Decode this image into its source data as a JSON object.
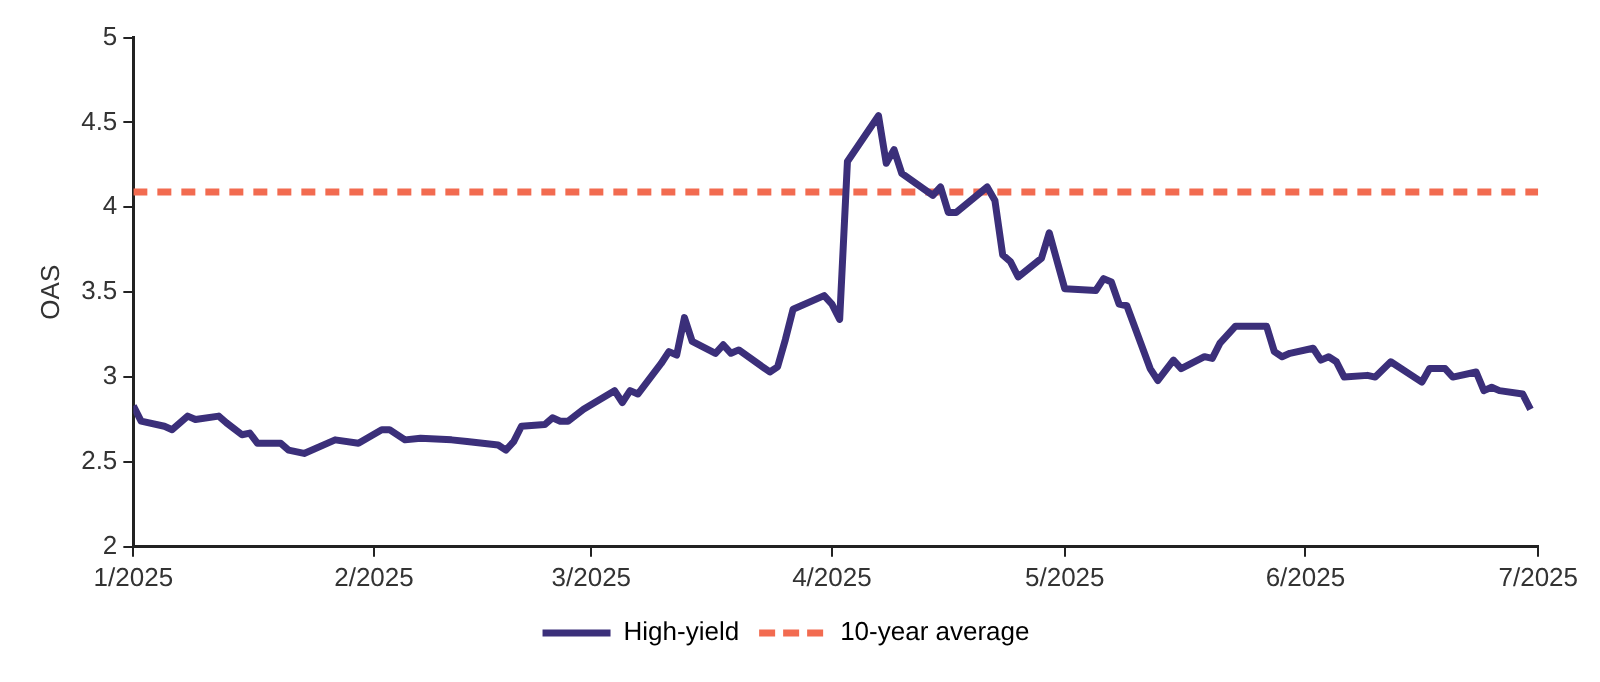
{
  "chart_data": {
    "type": "line",
    "ylabel": "OAS",
    "x": [
      "2025-01-01",
      "2025-01-02",
      "2025-01-05",
      "2025-01-06",
      "2025-01-08",
      "2025-01-09",
      "2025-01-12",
      "2025-01-13",
      "2025-01-15",
      "2025-01-16",
      "2025-01-17",
      "2025-01-20",
      "2025-01-21",
      "2025-01-23",
      "2025-01-27",
      "2025-01-30",
      "2025-02-02",
      "2025-02-03",
      "2025-02-05",
      "2025-02-07",
      "2025-02-11",
      "2025-02-13",
      "2025-02-17",
      "2025-02-18",
      "2025-02-19",
      "2025-02-20",
      "2025-02-23",
      "2025-02-24",
      "2025-02-25",
      "2025-02-26",
      "2025-02-28",
      "2025-03-04",
      "2025-03-05",
      "2025-03-06",
      "2025-03-07",
      "2025-03-10",
      "2025-03-11",
      "2025-03-12",
      "2025-03-13",
      "2025-03-14",
      "2025-03-17",
      "2025-03-18",
      "2025-03-19",
      "2025-03-20",
      "2025-03-24",
      "2025-03-25",
      "2025-03-26",
      "2025-03-27",
      "2025-03-31",
      "2025-04-01",
      "2025-04-02",
      "2025-04-03",
      "2025-04-07",
      "2025-04-08",
      "2025-04-09",
      "2025-04-10",
      "2025-04-14",
      "2025-04-15",
      "2025-04-16",
      "2025-04-17",
      "2025-04-21",
      "2025-04-22",
      "2025-04-23",
      "2025-04-24",
      "2025-04-25",
      "2025-04-28",
      "2025-04-29",
      "2025-05-01",
      "2025-05-05",
      "2025-05-06",
      "2025-05-07",
      "2025-05-08",
      "2025-05-09",
      "2025-05-12",
      "2025-05-13",
      "2025-05-15",
      "2025-05-16",
      "2025-05-19",
      "2025-05-20",
      "2025-05-21",
      "2025-05-23",
      "2025-05-27",
      "2025-05-28",
      "2025-05-29",
      "2025-05-30",
      "2025-06-02",
      "2025-06-03",
      "2025-06-04",
      "2025-06-05",
      "2025-06-06",
      "2025-06-09",
      "2025-06-10",
      "2025-06-12",
      "2025-06-16",
      "2025-06-17",
      "2025-06-19",
      "2025-06-20",
      "2025-06-23",
      "2025-06-24",
      "2025-06-25",
      "2025-06-26",
      "2025-06-29",
      "2025-06-30"
    ],
    "series": [
      {
        "name": "High-yield",
        "color": "#3b2f7a",
        "values": [
          2.83,
          2.74,
          2.71,
          2.69,
          2.77,
          2.75,
          2.77,
          2.73,
          2.66,
          2.67,
          2.61,
          2.61,
          2.57,
          2.55,
          2.63,
          2.61,
          2.69,
          2.69,
          2.63,
          2.64,
          2.63,
          2.62,
          2.6,
          2.57,
          2.62,
          2.71,
          2.72,
          2.76,
          2.74,
          2.74,
          2.81,
          2.92,
          2.85,
          2.92,
          2.9,
          3.08,
          3.15,
          3.13,
          3.35,
          3.21,
          3.14,
          3.19,
          3.14,
          3.16,
          3.03,
          3.06,
          3.22,
          3.4,
          3.48,
          3.43,
          3.34,
          4.27,
          4.54,
          4.26,
          4.34,
          4.2,
          4.07,
          4.12,
          3.97,
          3.97,
          4.12,
          4.04,
          3.72,
          3.68,
          3.59,
          3.7,
          3.85,
          3.52,
          3.51,
          3.58,
          3.56,
          3.43,
          3.42,
          3.05,
          2.98,
          3.1,
          3.05,
          3.12,
          3.11,
          3.2,
          3.3,
          3.3,
          3.15,
          3.12,
          3.14,
          3.17,
          3.1,
          3.12,
          3.09,
          3.0,
          3.01,
          3.0,
          3.09,
          2.97,
          3.05,
          3.05,
          3.0,
          3.03,
          2.92,
          2.94,
          2.92,
          2.9,
          2.81
        ]
      }
    ],
    "ref_lines": [
      {
        "axis": "y",
        "value": 4.09,
        "label": "10-year average",
        "color": "#f26b50",
        "line_style": "dashed"
      }
    ],
    "xlim": [
      "2025-01",
      "2025-07"
    ],
    "xticks": [
      {
        "value": "2025-01",
        "label": "1/2025"
      },
      {
        "value": "2025-02",
        "label": "2/2025"
      },
      {
        "value": "2025-03",
        "label": "3/2025"
      },
      {
        "value": "2025-04",
        "label": "4/2025"
      },
      {
        "value": "2025-05",
        "label": "5/2025"
      },
      {
        "value": "2025-06",
        "label": "6/2025"
      },
      {
        "value": "2025-07",
        "label": "7/2025"
      }
    ],
    "ylim": [
      2,
      5
    ],
    "yticks": [
      2,
      2.5,
      3,
      3.5,
      4,
      4.5,
      5
    ],
    "grid": false,
    "legend": "bottom",
    "marker": "none",
    "line_style": "solid"
  }
}
